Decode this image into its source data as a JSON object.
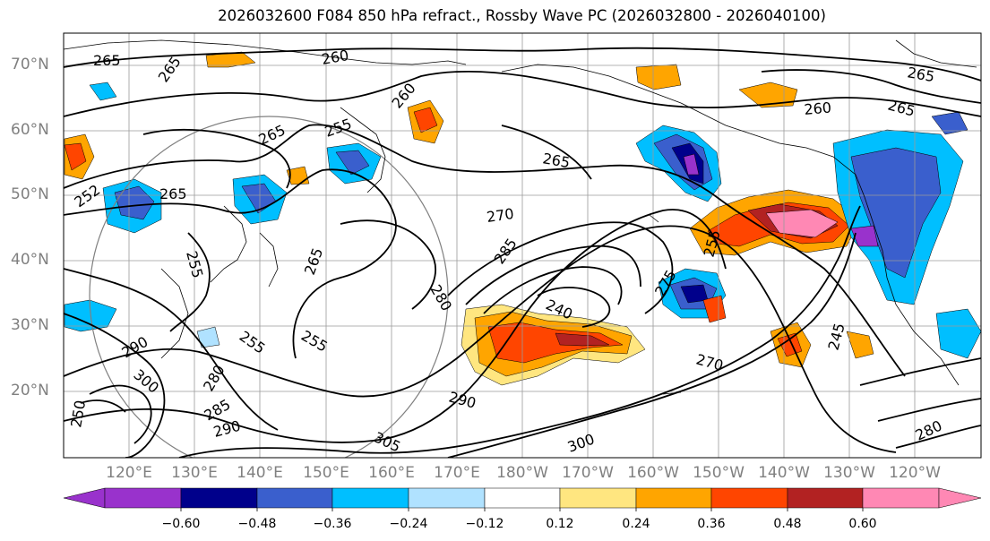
{
  "title": "2026032600 F084 850 hPa refract., Rossby Wave PC (2026032800 - 2026040100)",
  "map": {
    "lat_labels": [
      "70°N",
      "60°N",
      "50°N",
      "40°N",
      "30°N",
      "20°N"
    ],
    "lon_labels": [
      "120°E",
      "130°E",
      "140°E",
      "150°E",
      "160°E",
      "170°E",
      "180°W",
      "170°W",
      "160°W",
      "150°W",
      "140°W",
      "130°W",
      "120°W"
    ],
    "contour_labels": [
      "265",
      "265",
      "260",
      "260",
      "255",
      "265",
      "265",
      "265",
      "260",
      "265",
      "265",
      "252",
      "270",
      "285",
      "275",
      "255",
      "255",
      "240",
      "280",
      "265",
      "255",
      "270",
      "245",
      "290",
      "255",
      "280",
      "285",
      "290",
      "300",
      "305",
      "300",
      "290",
      "250",
      "280"
    ]
  },
  "colorbar": {
    "ticks": [
      "−0.60",
      "−0.48",
      "−0.36",
      "−0.24",
      "−0.12",
      "0.12",
      "0.24",
      "0.36",
      "0.48",
      "0.60"
    ],
    "colors": [
      "#9932cc",
      "#00008b",
      "#3a5fcd",
      "#00bfff",
      "#b0e2ff",
      "#ffffff",
      "#ffe680",
      "#ffa500",
      "#ff4500",
      "#b22222",
      "#ff88b4"
    ]
  }
}
